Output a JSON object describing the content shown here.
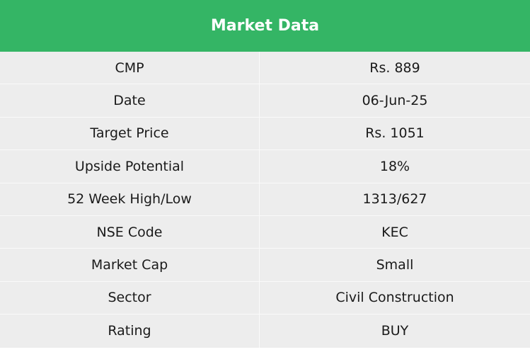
{
  "table": {
    "title": "Market Data",
    "rows": [
      {
        "label": "CMP",
        "value": "Rs. 889"
      },
      {
        "label": "Date",
        "value": "06-Jun-25"
      },
      {
        "label": "Target Price",
        "value": "Rs. 1051"
      },
      {
        "label": "Upside Potential",
        "value": "18%"
      },
      {
        "label": "52 Week High/Low",
        "value": "1313/627"
      },
      {
        "label": "NSE Code",
        "value": "KEC"
      },
      {
        "label": "Market Cap",
        "value": "Small"
      },
      {
        "label": "Sector",
        "value": "Civil Construction"
      },
      {
        "label": "Rating",
        "value": "BUY"
      }
    ]
  },
  "colors": {
    "header_bg": "#34b565",
    "header_text": "#ffffff",
    "row_bg": "#ededed",
    "divider": "#fafafa"
  }
}
